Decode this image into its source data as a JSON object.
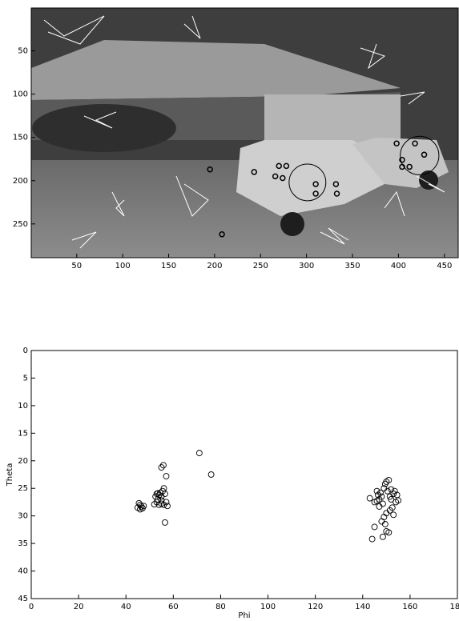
{
  "chart_data": [
    {
      "type": "image",
      "xlim": [
        0.5,
        465
      ],
      "ylim": [
        0.5,
        289
      ],
      "xticks": [
        50,
        100,
        150,
        200,
        250,
        300,
        350,
        400,
        450
      ],
      "yticks": [
        50,
        100,
        150,
        200,
        250
      ],
      "points": {
        "x": [
          195,
          243,
          266,
          274,
          270,
          278,
          310,
          332,
          310,
          333,
          398,
          418,
          404,
          404,
          412,
          428,
          208
        ],
        "y": [
          187,
          190,
          195,
          197,
          183,
          183,
          204,
          204,
          215,
          215,
          157,
          157,
          176,
          184,
          184,
          170,
          262
        ]
      },
      "regions": {
        "x": [
          301,
          423
        ],
        "y": [
          202,
          171
        ],
        "r": [
          20,
          21
        ]
      }
    },
    {
      "type": "scatter",
      "xlabel": "Phi",
      "ylabel": "Theta",
      "xlim": [
        0,
        180
      ],
      "ylim": [
        0,
        45
      ],
      "xticks": [
        0,
        20,
        40,
        60,
        80,
        100,
        120,
        140,
        160,
        180
      ],
      "yticks": [
        0,
        5,
        10,
        15,
        20,
        25,
        30,
        35,
        40,
        45
      ],
      "x": [
        45,
        45.5,
        46,
        46.5,
        47,
        47.5,
        46,
        52,
        52.5,
        53,
        53.5,
        54,
        54.5,
        55,
        55,
        55.5,
        56,
        56.5,
        57,
        57.5,
        56,
        54,
        53,
        55,
        55.8,
        57,
        56.5,
        71,
        76,
        55,
        53.5,
        143,
        144,
        145,
        145,
        146,
        146.5,
        147,
        147.5,
        148,
        148.5,
        149,
        149.5,
        150,
        150.5,
        151,
        151.5,
        152,
        152.5,
        153,
        153.5,
        154,
        154.5,
        155,
        149,
        148,
        149.5,
        150,
        151,
        148.5,
        150,
        151.5,
        147,
        146,
        152,
        153
      ],
      "y": [
        28.5,
        27.7,
        28.8,
        28.3,
        28.6,
        28.2,
        28,
        27.9,
        26.5,
        26,
        27,
        26.2,
        25.8,
        26.5,
        27.2,
        25.5,
        25,
        26,
        27.5,
        28.2,
        28,
        28,
        27.5,
        21.2,
        20.8,
        22.8,
        31.2,
        18.6,
        22.5,
        27.8,
        25.9,
        26.8,
        34.2,
        32,
        27.5,
        25.5,
        26.2,
        27,
        25.8,
        26.5,
        27.8,
        25,
        24.2,
        23.8,
        25.5,
        23.5,
        26.5,
        27,
        28.5,
        26,
        25.5,
        27.5,
        26.2,
        27.2,
        30.2,
        31,
        31.5,
        32.8,
        33,
        33.8,
        29.5,
        29,
        28.3,
        27.3,
        25.2,
        29.8
      ]
    }
  ]
}
